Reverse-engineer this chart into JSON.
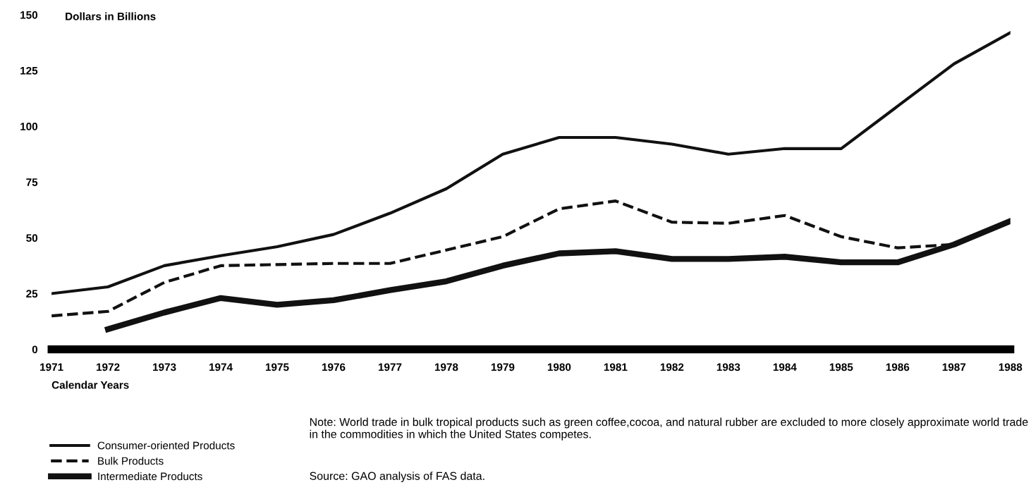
{
  "chart_data": {
    "type": "line",
    "ylabel": "Dollars in Billions",
    "xlabel": "Calendar Years",
    "x": [
      1971,
      1972,
      1973,
      1974,
      1975,
      1976,
      1977,
      1978,
      1979,
      1980,
      1981,
      1982,
      1983,
      1984,
      1985,
      1986,
      1987,
      1988
    ],
    "xlim": [
      1971,
      1988
    ],
    "xticks": [
      1971,
      1972,
      1973,
      1974,
      1975,
      1976,
      1977,
      1978,
      1979,
      1980,
      1981,
      1982,
      1983,
      1984,
      1985,
      1986,
      1987,
      1988
    ],
    "ylim": [
      0,
      150
    ],
    "yticks": [
      0,
      25,
      50,
      75,
      100,
      125,
      150
    ],
    "series": [
      {
        "name": "Consumer-oriented Products",
        "color": "#111111",
        "line_style": "solid",
        "values": [
          25,
          28,
          37.5,
          42,
          46,
          51.5,
          61,
          72,
          87.5,
          95,
          95,
          92,
          87.5,
          90,
          90,
          109,
          128,
          142
        ]
      },
      {
        "name": "Bulk Products",
        "color": "#111111",
        "line_style": "dashed",
        "values": [
          15,
          17,
          30,
          37.5,
          38,
          38.5,
          38.5,
          44.5,
          50.5,
          63,
          66.5,
          57,
          56.5,
          60,
          50.5,
          45.5,
          47,
          58
        ]
      },
      {
        "name": "Intermediate Products",
        "color": "#111111",
        "line_style": "solid",
        "values": [
          null,
          9,
          16.5,
          23,
          20,
          22,
          26.5,
          30.5,
          37.5,
          43,
          44,
          40.5,
          40.5,
          41.5,
          39,
          39,
          47,
          57.5
        ]
      }
    ],
    "legend": "bottom left",
    "grid": false,
    "marker": "none",
    "annotations": [
      "Note: World trade in bulk tropical products such as green coffee,cocoa, and natural rubber are excluded to more closely approximate world trade in the commodities in which the United States competes.",
      "Source: GAO analysis of FAS data."
    ]
  }
}
